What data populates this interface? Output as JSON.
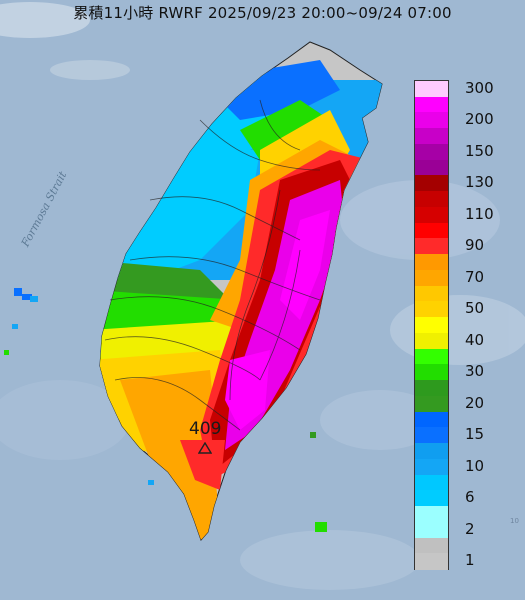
{
  "header": {
    "title": "累積11小時 RWRF 2025/09/23 20:00~09/24 07:00"
  },
  "map": {
    "sea_label": "Formosa Strait",
    "max_value_label": "409",
    "corner_label": "10"
  },
  "legend": {
    "items": [
      {
        "label": "300",
        "color": "#ffcbff"
      },
      {
        "label": "",
        "color": "#ff00ff"
      },
      {
        "label": "200",
        "color": "#ea00ea"
      },
      {
        "label": "",
        "color": "#c800c8"
      },
      {
        "label": "150",
        "color": "#a600a6"
      },
      {
        "label": "",
        "color": "#9a0096"
      },
      {
        "label": "130",
        "color": "#a40000"
      },
      {
        "label": "",
        "color": "#c70000"
      },
      {
        "label": "110",
        "color": "#d60000"
      },
      {
        "label": "",
        "color": "#ff0000"
      },
      {
        "label": "90",
        "color": "#ff2a2a"
      },
      {
        "label": "",
        "color": "#ff9900"
      },
      {
        "label": "70",
        "color": "#ffa600"
      },
      {
        "label": "",
        "color": "#ffc800"
      },
      {
        "label": "50",
        "color": "#ffd200"
      },
      {
        "label": "",
        "color": "#ffff00"
      },
      {
        "label": "40",
        "color": "#f0f000"
      },
      {
        "label": "",
        "color": "#33ff00"
      },
      {
        "label": "30",
        "color": "#22dd00"
      },
      {
        "label": "",
        "color": "#2e9a1e"
      },
      {
        "label": "20",
        "color": "#349a20"
      },
      {
        "label": "",
        "color": "#0066ff"
      },
      {
        "label": "15",
        "color": "#0a70ff"
      },
      {
        "label": "",
        "color": "#109ef0"
      },
      {
        "label": "10",
        "color": "#14a6f5"
      },
      {
        "label": "",
        "color": "#00c8ff"
      },
      {
        "label": "6",
        "color": "#00ccff"
      },
      {
        "label": "",
        "color": "#9bffff"
      },
      {
        "label": "2",
        "color": "#9bffff"
      },
      {
        "label": "",
        "color": "#c0c0c0"
      },
      {
        "label": "1",
        "color": "#c6c6c6"
      }
    ]
  }
}
